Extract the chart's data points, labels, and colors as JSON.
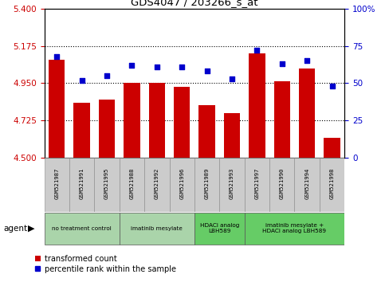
{
  "title": "GDS4047 / 203266_s_at",
  "samples": [
    "GSM521987",
    "GSM521991",
    "GSM521995",
    "GSM521988",
    "GSM521992",
    "GSM521996",
    "GSM521989",
    "GSM521993",
    "GSM521997",
    "GSM521990",
    "GSM521994",
    "GSM521998"
  ],
  "bar_values": [
    5.09,
    4.83,
    4.85,
    4.95,
    4.95,
    4.93,
    4.82,
    4.77,
    5.13,
    4.96,
    5.04,
    4.62
  ],
  "percentile_values": [
    68,
    52,
    55,
    62,
    61,
    61,
    58,
    53,
    72,
    63,
    65,
    48
  ],
  "bar_color": "#cc0000",
  "percentile_color": "#0000cc",
  "ylim_left": [
    4.5,
    5.4
  ],
  "ylim_right": [
    0,
    100
  ],
  "yticks_left": [
    4.5,
    4.725,
    4.95,
    5.175,
    5.4
  ],
  "yticks_right": [
    0,
    25,
    50,
    75,
    100
  ],
  "ytick_labels_right": [
    "0",
    "25",
    "50",
    "75",
    "100%"
  ],
  "hlines": [
    4.725,
    4.95,
    5.175
  ],
  "groups": [
    {
      "label": "no treatment control",
      "start": 0,
      "end": 3
    },
    {
      "label": "imatinib mesylate",
      "start": 3,
      "end": 6
    },
    {
      "label": "HDACi analog\nLBH589",
      "start": 6,
      "end": 8
    },
    {
      "label": "imatinib mesylate +\nHDACi analog LBH589",
      "start": 8,
      "end": 12
    }
  ],
  "group_colors": [
    "#aad4aa",
    "#aad4aa",
    "#66cc66",
    "#66cc66"
  ],
  "agent_label": "agent",
  "legend_bar_label": "transformed count",
  "legend_dot_label": "percentile rank within the sample",
  "bar_width": 0.65,
  "background_color": "#ffffff",
  "sample_box_color": "#cccccc",
  "tick_label_color_left": "#cc0000",
  "tick_label_color_right": "#0000cc"
}
